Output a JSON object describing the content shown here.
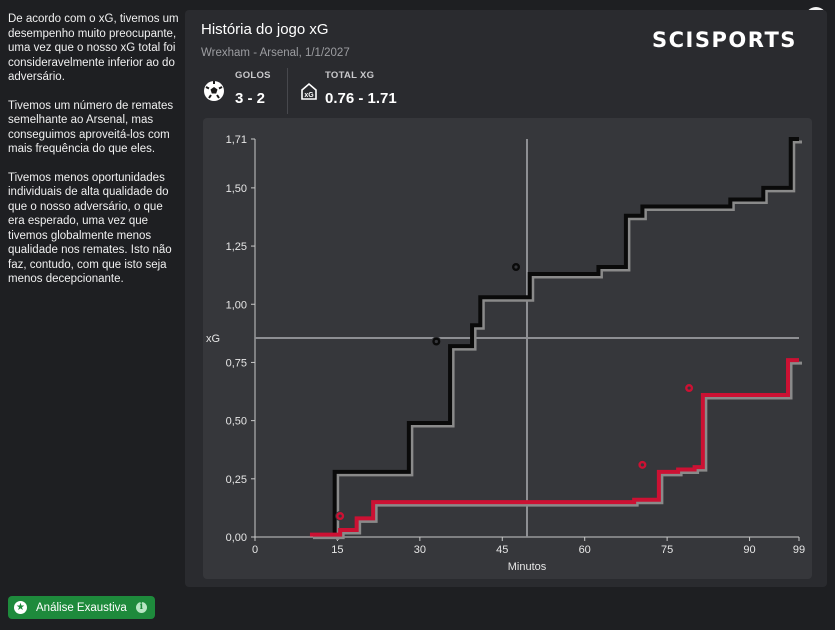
{
  "sidebar": {
    "paragraphs": [
      "De acordo com o xG, tivemos um desempenho muito preocupante, uma vez que o nosso xG total foi consideravelmente inferior ao do adversário.",
      "Tivemos um número de remates semelhante ao Arsenal, mas conseguimos aproveitá-los com mais frequência do que eles.",
      "Tivemos menos oportunidades individuais de alta qualidade do que o nosso adversário, o que era esperado, uma vez que tivemos globalmente menos qualidade nos remates. Isto não faz, contudo, com que isto seja menos decepcionante."
    ],
    "analysis_button_label": "Análise Exaustiva",
    "analysis_button_icon": "star-icon",
    "info_icon": "info-icon"
  },
  "panel": {
    "title": "História do jogo xG",
    "subtitle": "Wrexham - Arsenal, 1/1/2027",
    "brand": "SCISPORTS",
    "close_icon": "close-icon",
    "stats": {
      "goals_label": "GOLOS",
      "goals_value": "3 - 2",
      "goals_icon": "football-icon",
      "xg_label": "TOTAL XG",
      "xg_value": "0.76 - 1.71",
      "xg_icon": "xg-goal-icon"
    }
  },
  "chart_data": {
    "type": "line",
    "xlabel": "Minutos",
    "ylabel": "xG",
    "xlim": [
      0,
      99
    ],
    "ylim": [
      0,
      1.71
    ],
    "x_ticks": [
      "0",
      "15",
      "30",
      "45",
      "60",
      "75",
      "90",
      "99"
    ],
    "x_tick_values": [
      0,
      15,
      30,
      45,
      60,
      75,
      90,
      99
    ],
    "y_ticks": [
      "0,00",
      "0,25",
      "0,50",
      "0,75",
      "1,00",
      "1,25",
      "1,50",
      "1,71"
    ],
    "y_tick_values": [
      0,
      0.25,
      0.5,
      0.75,
      1.0,
      1.25,
      1.5,
      1.71
    ],
    "crosshair": {
      "x": 49.5,
      "y": 0.855
    },
    "series": [
      {
        "color": "#0a0a0a",
        "shadow": "#8a8a8a",
        "points": [
          [
            14.5,
            0
          ],
          [
            14.5,
            0.28
          ],
          [
            28,
            0.28
          ],
          [
            28,
            0.49
          ],
          [
            35.5,
            0.49
          ],
          [
            35.5,
            0.82
          ],
          [
            39.5,
            0.82
          ],
          [
            39.5,
            0.91
          ],
          [
            41,
            0.91
          ],
          [
            41,
            1.03
          ],
          [
            50,
            1.03
          ],
          [
            50,
            1.13
          ],
          [
            62.5,
            1.13
          ],
          [
            62.5,
            1.16
          ],
          [
            67.5,
            1.16
          ],
          [
            67.5,
            1.38
          ],
          [
            70.5,
            1.38
          ],
          [
            70.5,
            1.42
          ],
          [
            86.5,
            1.42
          ],
          [
            86.5,
            1.45
          ],
          [
            92.5,
            1.45
          ],
          [
            92.5,
            1.5
          ],
          [
            97.5,
            1.5
          ],
          [
            97.5,
            1.71
          ],
          [
            99,
            1.71
          ]
        ],
        "goals": [
          [
            33,
            0.84
          ],
          [
            47.5,
            1.16
          ]
        ]
      },
      {
        "color": "#cc1133",
        "shadow": "#8a8a8a",
        "points": [
          [
            10,
            0.01
          ],
          [
            15.5,
            0.01
          ],
          [
            15.5,
            0.03
          ],
          [
            18.5,
            0.03
          ],
          [
            18.5,
            0.08
          ],
          [
            21.5,
            0.08
          ],
          [
            21.5,
            0.15
          ],
          [
            69,
            0.15
          ],
          [
            69,
            0.16
          ],
          [
            73.5,
            0.16
          ],
          [
            73.5,
            0.28
          ],
          [
            77,
            0.28
          ],
          [
            77,
            0.29
          ],
          [
            80,
            0.29
          ],
          [
            80,
            0.3
          ],
          [
            81.5,
            0.3
          ],
          [
            81.5,
            0.61
          ],
          [
            97,
            0.61
          ],
          [
            97,
            0.76
          ],
          [
            99,
            0.76
          ]
        ],
        "goals": [
          [
            15.5,
            0.09
          ],
          [
            70.5,
            0.31
          ],
          [
            79,
            0.64
          ]
        ]
      }
    ]
  }
}
